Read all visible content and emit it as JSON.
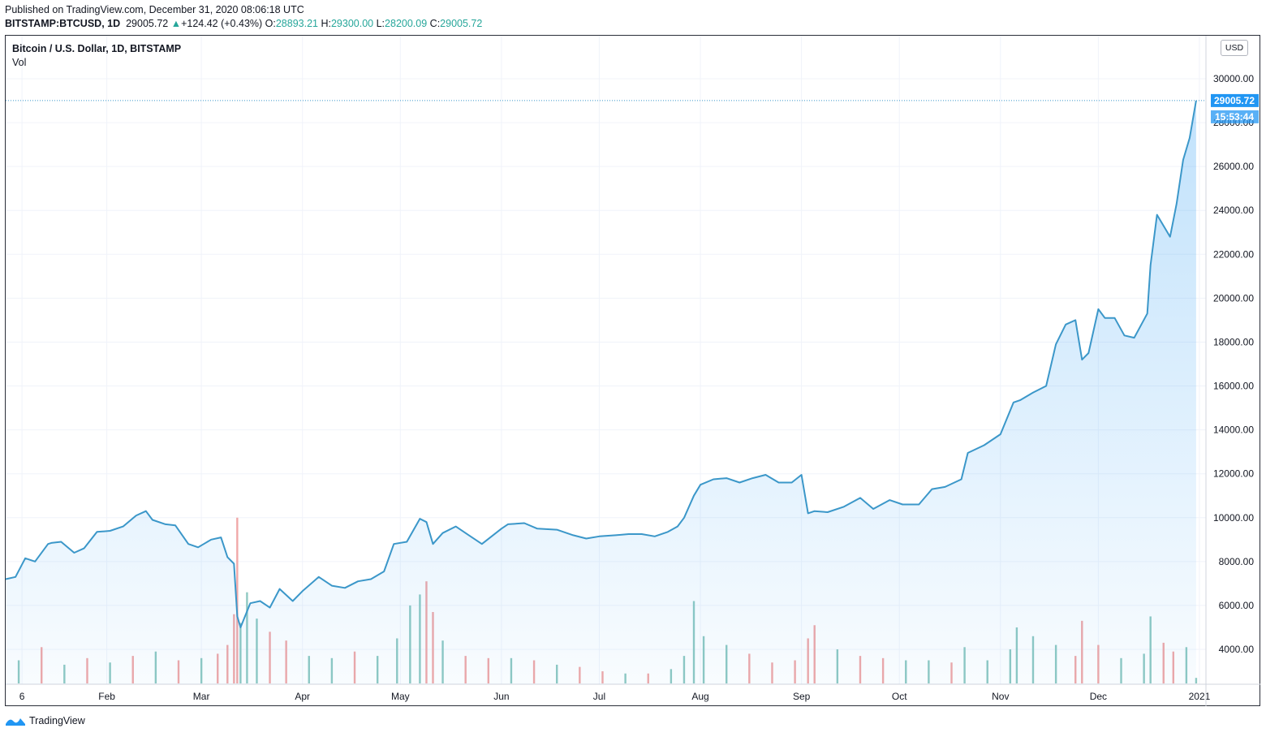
{
  "header": {
    "published": "Published on TradingView.com, December 31, 2020 08:06:18 UTC",
    "symbol": "BITSTAMP:BTCUSD, 1D",
    "last": "29005.72",
    "change": "+124.42 (+0.43%)",
    "o_label": "O:",
    "o_value": "28893.21",
    "h_label": "H:",
    "h_value": "29300.00",
    "l_label": "L:",
    "l_value": "28200.09",
    "c_label": "C:",
    "c_value": "29005.72"
  },
  "legend": {
    "title": "Bitcoin / U.S. Dollar, 1D, BITSTAMP",
    "volume": "Vol"
  },
  "currency_badge": "USD",
  "footer": {
    "brand": "TradingView",
    "logo_icon": "tradingview-logo-icon"
  },
  "price_badge": {
    "value": "29005.72",
    "countdown": "15:53:44",
    "color": "#2196f3"
  },
  "colors": {
    "line": "#3b97c9",
    "fill": "#2196f3",
    "vol_up": "#8fc9c2",
    "vol_down": "#f0a8a8"
  },
  "chart_data": {
    "type": "area",
    "ylim": [
      2600,
      30800
    ],
    "y_ticks": [
      "30000.00",
      "28000.00",
      "26000.00",
      "24000.00",
      "22000.00",
      "20000.00",
      "18000.00",
      "16000.00",
      "14000.00",
      "12000.00",
      "10000.00",
      "8000.00",
      "6000.00",
      "4000.00"
    ],
    "x_tick_labels": [
      "6",
      "Feb",
      "Mar",
      "Apr",
      "May",
      "Jun",
      "Jul",
      "Aug",
      "Sep",
      "Oct",
      "Nov",
      "Dec",
      "2021"
    ],
    "x_tick_dates": [
      "2020-01-06",
      "2020-02-01",
      "2020-03-01",
      "2020-04-01",
      "2020-05-01",
      "2020-06-01",
      "2020-07-01",
      "2020-08-01",
      "2020-09-01",
      "2020-10-01",
      "2020-11-01",
      "2020-12-01",
      "2021-01-01"
    ],
    "x_range": [
      "2020-01-01",
      "2021-01-03"
    ],
    "series": [
      {
        "x": [
          "2020-01-01",
          "2020-01-04",
          "2020-01-07",
          "2020-01-10",
          "2020-01-14",
          "2020-01-15",
          "2020-01-18",
          "2020-01-22",
          "2020-01-25",
          "2020-01-29",
          "2020-02-02",
          "2020-02-06",
          "2020-02-10",
          "2020-02-13",
          "2020-02-15",
          "2020-02-19",
          "2020-02-22",
          "2020-02-26",
          "2020-02-29",
          "2020-03-04",
          "2020-03-07",
          "2020-03-09",
          "2020-03-11",
          "2020-03-12",
          "2020-03-13",
          "2020-03-16",
          "2020-03-19",
          "2020-03-22",
          "2020-03-25",
          "2020-03-29",
          "2020-04-01",
          "2020-04-06",
          "2020-04-10",
          "2020-04-14",
          "2020-04-18",
          "2020-04-22",
          "2020-04-26",
          "2020-04-29",
          "2020-05-03",
          "2020-05-07",
          "2020-05-09",
          "2020-05-11",
          "2020-05-14",
          "2020-05-18",
          "2020-05-22",
          "2020-05-26",
          "2020-06-01",
          "2020-06-03",
          "2020-06-08",
          "2020-06-12",
          "2020-06-18",
          "2020-06-23",
          "2020-06-27",
          "2020-07-01",
          "2020-07-06",
          "2020-07-10",
          "2020-07-14",
          "2020-07-18",
          "2020-07-22",
          "2020-07-25",
          "2020-07-27",
          "2020-07-30",
          "2020-08-01",
          "2020-08-05",
          "2020-08-09",
          "2020-08-13",
          "2020-08-17",
          "2020-08-21",
          "2020-08-25",
          "2020-08-29",
          "2020-09-01",
          "2020-09-03",
          "2020-09-05",
          "2020-09-09",
          "2020-09-14",
          "2020-09-19",
          "2020-09-23",
          "2020-09-28",
          "2020-10-02",
          "2020-10-07",
          "2020-10-11",
          "2020-10-15",
          "2020-10-20",
          "2020-10-22",
          "2020-10-27",
          "2020-11-01",
          "2020-11-05",
          "2020-11-07",
          "2020-11-11",
          "2020-11-15",
          "2020-11-18",
          "2020-11-21",
          "2020-11-24",
          "2020-11-26",
          "2020-11-28",
          "2020-12-01",
          "2020-12-03",
          "2020-12-06",
          "2020-12-09",
          "2020-12-12",
          "2020-12-16",
          "2020-12-17",
          "2020-12-19",
          "2020-12-21",
          "2020-12-23",
          "2020-12-25",
          "2020-12-27",
          "2020-12-29",
          "2020-12-31"
        ],
        "y": [
          7200,
          7300,
          8150,
          8000,
          8800,
          8850,
          8900,
          8400,
          8600,
          9350,
          9400,
          9600,
          10100,
          10300,
          9900,
          9700,
          9650,
          8800,
          8650,
          9000,
          9100,
          8200,
          7900,
          5500,
          5000,
          6100,
          6200,
          5900,
          6750,
          6200,
          6650,
          7300,
          6900,
          6800,
          7100,
          7200,
          7550,
          8800,
          8900,
          9950,
          9800,
          8800,
          9300,
          9600,
          9200,
          8800,
          9500,
          9700,
          9750,
          9500,
          9450,
          9200,
          9050,
          9150,
          9200,
          9250,
          9250,
          9150,
          9350,
          9600,
          10000,
          11000,
          11500,
          11750,
          11800,
          11600,
          11800,
          11950,
          11600,
          11600,
          11950,
          10200,
          10300,
          10250,
          10500,
          10900,
          10400,
          10800,
          10600,
          10600,
          11300,
          11400,
          11750,
          12950,
          13300,
          13800,
          15250,
          15350,
          15700,
          16000,
          17900,
          18800,
          19000,
          17200,
          17500,
          19500,
          19100,
          19100,
          18300,
          18200,
          19300,
          21500,
          23800,
          23300,
          22800,
          24300,
          26300,
          27300,
          29005
        ]
      }
    ],
    "volume": {
      "x": [
        "2020-01-05",
        "2020-01-12",
        "2020-01-19",
        "2020-01-26",
        "2020-02-02",
        "2020-02-09",
        "2020-02-16",
        "2020-02-23",
        "2020-03-01",
        "2020-03-06",
        "2020-03-09",
        "2020-03-11",
        "2020-03-12",
        "2020-03-13",
        "2020-03-15",
        "2020-03-18",
        "2020-03-22",
        "2020-03-27",
        "2020-04-03",
        "2020-04-10",
        "2020-04-17",
        "2020-04-24",
        "2020-04-30",
        "2020-05-04",
        "2020-05-07",
        "2020-05-09",
        "2020-05-11",
        "2020-05-14",
        "2020-05-21",
        "2020-05-28",
        "2020-06-04",
        "2020-06-11",
        "2020-06-18",
        "2020-06-25",
        "2020-07-02",
        "2020-07-09",
        "2020-07-16",
        "2020-07-23",
        "2020-07-27",
        "2020-07-30",
        "2020-08-02",
        "2020-08-09",
        "2020-08-16",
        "2020-08-23",
        "2020-08-30",
        "2020-09-03",
        "2020-09-05",
        "2020-09-12",
        "2020-09-19",
        "2020-09-26",
        "2020-10-03",
        "2020-10-10",
        "2020-10-17",
        "2020-10-21",
        "2020-10-28",
        "2020-11-04",
        "2020-11-06",
        "2020-11-11",
        "2020-11-18",
        "2020-11-24",
        "2020-11-26",
        "2020-12-01",
        "2020-12-08",
        "2020-12-15",
        "2020-12-17",
        "2020-12-21",
        "2020-12-24",
        "2020-12-28",
        "2020-12-31"
      ],
      "values": [
        3500,
        4100,
        3300,
        3600,
        3400,
        3700,
        3900,
        3500,
        3600,
        3800,
        4200,
        5600,
        10000,
        5200,
        6600,
        5400,
        4800,
        4400,
        3700,
        3600,
        3900,
        3700,
        4500,
        6000,
        6500,
        7100,
        5700,
        4400,
        3700,
        3600,
        3600,
        3500,
        3300,
        3200,
        3000,
        2900,
        2900,
        3100,
        3700,
        6200,
        4600,
        4200,
        3800,
        3400,
        3500,
        4500,
        5100,
        4000,
        3700,
        3600,
        3500,
        3500,
        3400,
        4100,
        3500,
        4000,
        5000,
        4600,
        4200,
        3700,
        5300,
        4200,
        3600,
        3800,
        5500,
        4300,
        3900,
        4100,
        2700
      ],
      "directions": [
        "up",
        "down",
        "up",
        "down",
        "up",
        "down",
        "up",
        "down",
        "up",
        "down",
        "down",
        "down",
        "down",
        "up",
        "up",
        "up",
        "down",
        "down",
        "up",
        "up",
        "down",
        "up",
        "up",
        "up",
        "up",
        "down",
        "down",
        "up",
        "down",
        "down",
        "up",
        "down",
        "up",
        "down",
        "down",
        "up",
        "down",
        "up",
        "up",
        "up",
        "up",
        "up",
        "down",
        "down",
        "down",
        "down",
        "down",
        "up",
        "down",
        "down",
        "up",
        "up",
        "down",
        "up",
        "up",
        "up",
        "up",
        "up",
        "up",
        "down",
        "down",
        "down",
        "up",
        "up",
        "up",
        "down",
        "down",
        "up",
        "up"
      ]
    }
  }
}
